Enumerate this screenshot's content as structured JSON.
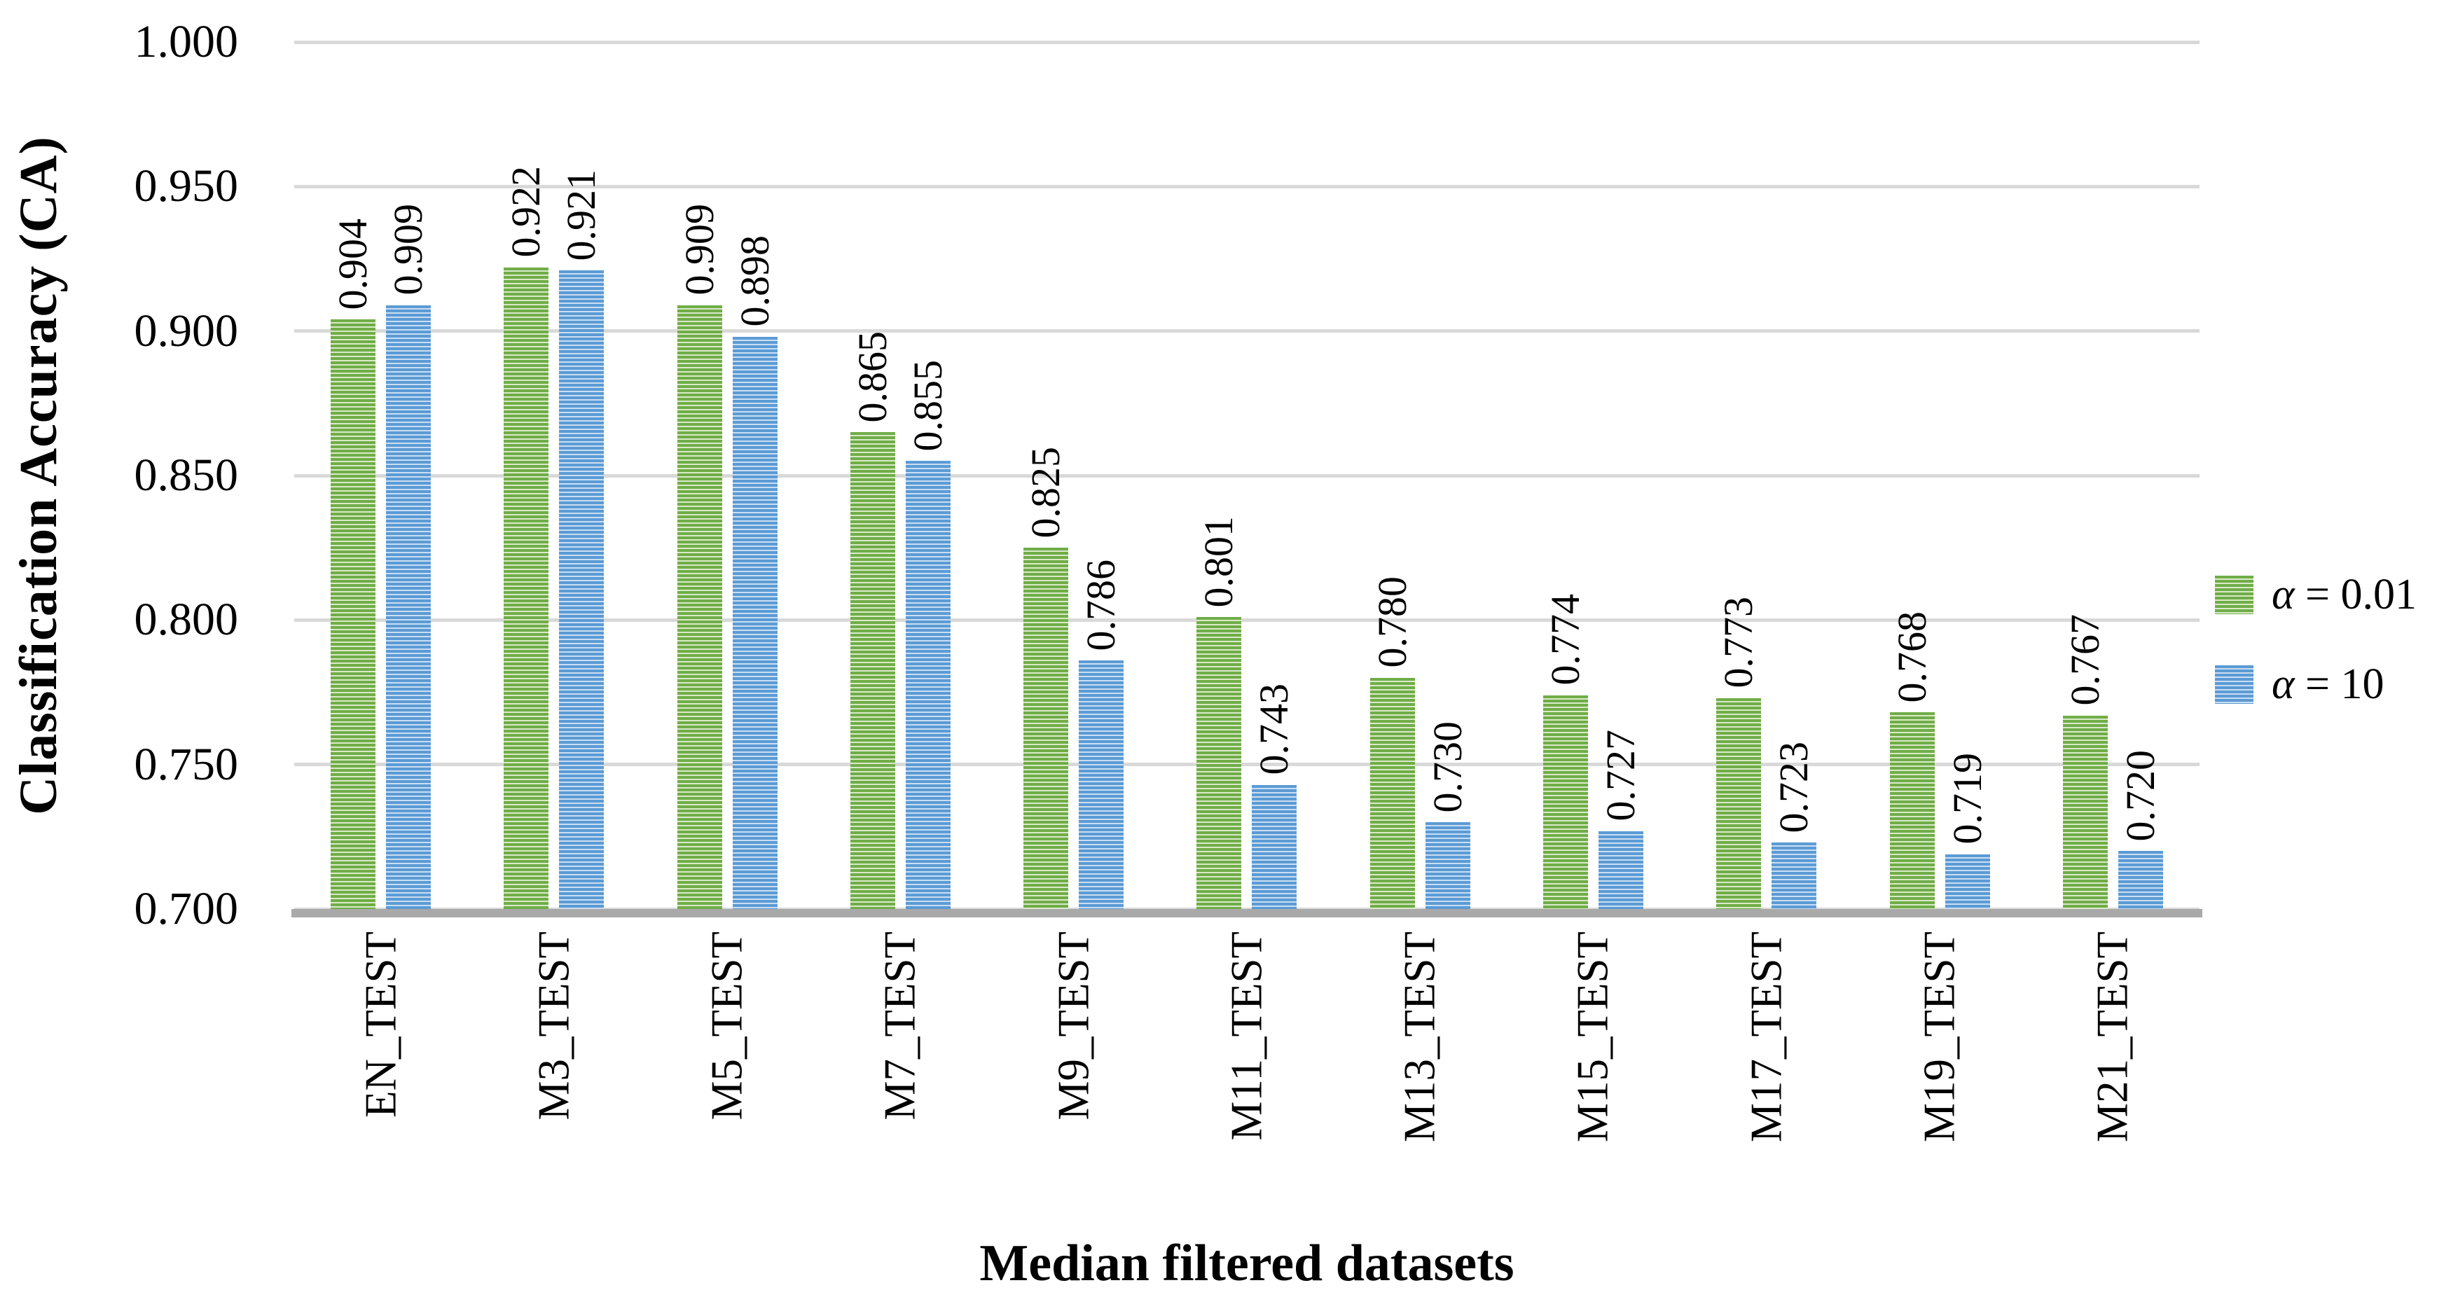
{
  "chart_data": {
    "type": "bar",
    "title": "",
    "xlabel": "Median filtered datasets",
    "ylabel": "Classification Accuracy (CA)",
    "categories": [
      "EN_TEST",
      "M3_TEST",
      "M5_TEST",
      "M7_TEST",
      "M9_TEST",
      "M11_TEST",
      "M13_TEST",
      "M15_TEST",
      "M17_TEST",
      "M19_TEST",
      "M21_TEST"
    ],
    "series": [
      {
        "name": "α = 0.01",
        "symbol": "α",
        "label_rest": " = 0.01",
        "color": "#70AD47",
        "stripe_color": "#D9EACA",
        "values": [
          0.904,
          0.922,
          0.909,
          0.865,
          0.825,
          0.801,
          0.78,
          0.774,
          0.773,
          0.768,
          0.767
        ],
        "labels": [
          "0.904",
          "0.922",
          "0.909",
          "0.865",
          "0.825",
          "0.801",
          "0.780",
          "0.774",
          "0.773",
          "0.768",
          "0.767"
        ]
      },
      {
        "name": "α = 10",
        "symbol": "α",
        "label_rest": " = 10",
        "color": "#5B9BD5",
        "stripe_color": "#CADEF2",
        "values": [
          0.909,
          0.921,
          0.898,
          0.855,
          0.786,
          0.743,
          0.73,
          0.727,
          0.723,
          0.719,
          0.72
        ],
        "labels": [
          "0.909",
          "0.921",
          "0.898",
          "0.855",
          "0.786",
          "0.743",
          "0.730",
          "0.727",
          "0.723",
          "0.719",
          "0.720"
        ]
      }
    ],
    "ylim": [
      0.7,
      1.0
    ],
    "ytick_step": 0.05,
    "yticks": [
      "1.000",
      "0.950",
      "0.900",
      "0.850",
      "0.800",
      "0.750",
      "0.700"
    ],
    "grid": "horizontal",
    "legend_position": "right",
    "bar_pattern": "horizontal-stripes"
  },
  "colors": {
    "gridline": "#D9D9D9",
    "axis_line": "#A9A9A9",
    "text": "#000000"
  }
}
